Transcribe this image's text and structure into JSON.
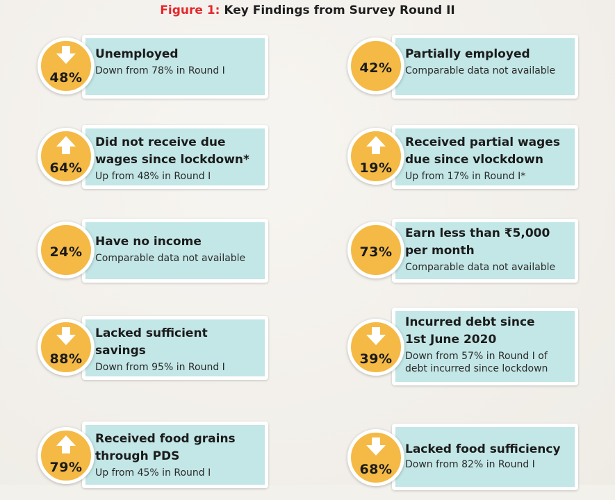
{
  "title": {
    "figure_label": "Figure 1:",
    "text": "Key Findings from Survey Round II"
  },
  "colors": {
    "circle": "#f4ba45",
    "card": "#c3e6e6",
    "figure_label": "#e5262b"
  },
  "cards": [
    {
      "percent": "48%",
      "arrow": "down-arrow-icon",
      "heading": [
        "Unemployed"
      ],
      "sub": [
        "Down from 78% in Round I"
      ]
    },
    {
      "percent": "42%",
      "arrow": null,
      "heading": [
        "Partially employed"
      ],
      "sub": [
        "Comparable data not available"
      ]
    },
    {
      "percent": "64%",
      "arrow": "up-arrow-icon",
      "heading": [
        "Did not receive due",
        "wages since lockdown*"
      ],
      "sub": [
        "Up from 48% in Round I"
      ]
    },
    {
      "percent": "19%",
      "arrow": "up-arrow-icon",
      "heading": [
        "Received partial wages",
        "due since vlockdown"
      ],
      "sub": [
        "Up from 17% in Round I*"
      ]
    },
    {
      "percent": "24%",
      "arrow": null,
      "heading": [
        "Have no income"
      ],
      "sub": [
        "Comparable data not available"
      ]
    },
    {
      "percent": "73%",
      "arrow": null,
      "heading": [
        "Earn less than ₹5,000",
        "per month"
      ],
      "sub": [
        "Comparable data not available"
      ]
    },
    {
      "percent": "88%",
      "arrow": "down-arrow-icon",
      "heading": [
        "Lacked sufficient",
        "savings"
      ],
      "sub": [
        "Down from 95% in Round I"
      ]
    },
    {
      "percent": "39%",
      "arrow": "down-arrow-icon",
      "heading": [
        "Incurred debt since",
        "1st June 2020"
      ],
      "sub": [
        "Down from 57% in Round I of",
        "debt incurred since lockdown"
      ]
    },
    {
      "percent": "79%",
      "arrow": "up-arrow-icon",
      "heading": [
        "Received food grains",
        "through PDS"
      ],
      "sub": [
        "Up from 45% in Round I"
      ]
    },
    {
      "percent": "68%",
      "arrow": "down-arrow-icon",
      "heading": [
        "Lacked food sufficiency"
      ],
      "sub": [
        "Down from 82% in Round I"
      ]
    }
  ]
}
